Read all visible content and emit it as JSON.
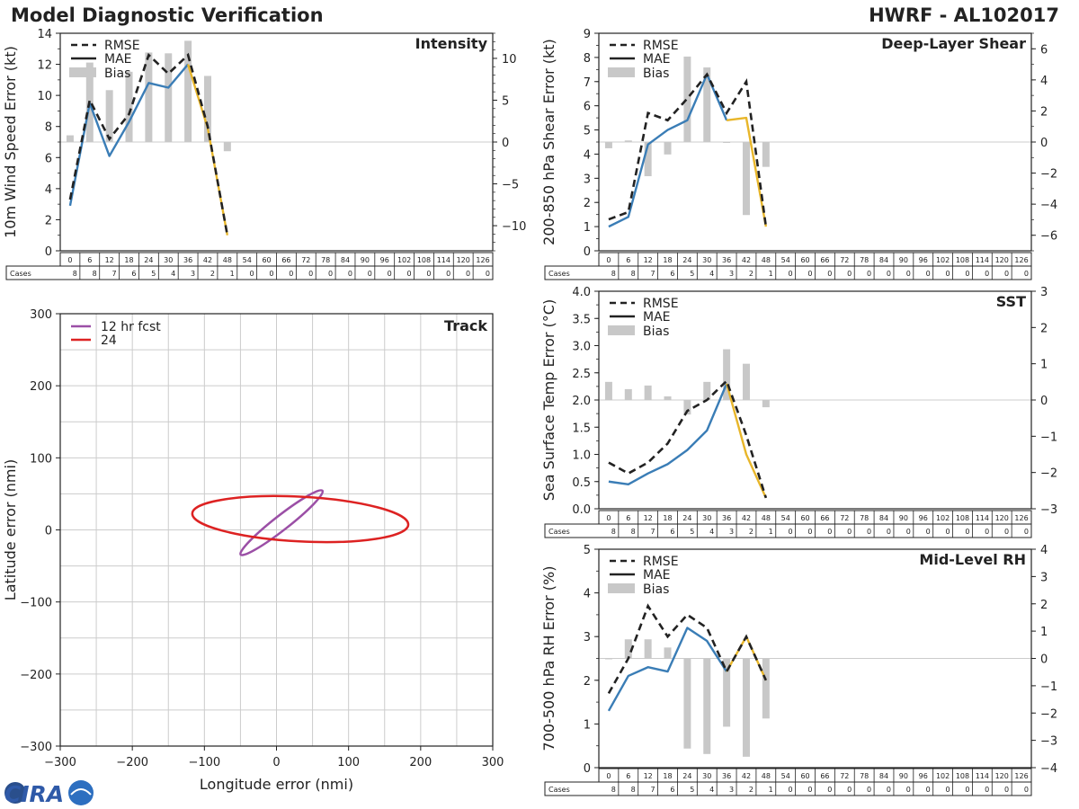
{
  "header": {
    "left_title": "Model Diagnostic Verification",
    "right_title": "HWRF - AL102017"
  },
  "colors": {
    "mae": "#3a7db6",
    "mae_late": "#e8b62a",
    "rmse": "#222222",
    "bias": "#c8c8c8",
    "track_12": "#9b4fa6",
    "track_24": "#dd2222"
  },
  "logo": {
    "text": "CIRA"
  },
  "legend": {
    "rmse": "RMSE",
    "mae": "MAE",
    "bias": "Bias"
  },
  "table": {
    "cases_label": "Cases",
    "hours": [
      0,
      6,
      12,
      18,
      24,
      30,
      36,
      42,
      48,
      54,
      60,
      66,
      72,
      78,
      84,
      90,
      96,
      102,
      108,
      114,
      120,
      126
    ],
    "cases": [
      8,
      8,
      7,
      6,
      5,
      4,
      3,
      2,
      1,
      0,
      0,
      0,
      0,
      0,
      0,
      0,
      0,
      0,
      0,
      0,
      0,
      0
    ]
  },
  "chart_data": [
    {
      "id": "intensity",
      "type": "line",
      "title": "Intensity",
      "ylabel": "10m Wind Speed Error (kt)",
      "ylim": [
        0,
        14
      ],
      "yticks": [
        0,
        2,
        4,
        6,
        8,
        10,
        12,
        14
      ],
      "bias_lim": [
        -13,
        13
      ],
      "bias_ticks": [
        -10,
        -5,
        0,
        5,
        10
      ],
      "x": [
        0,
        6,
        12,
        18,
        24,
        30,
        36,
        42,
        48
      ],
      "rmse": [
        3.3,
        9.7,
        7.2,
        8.8,
        12.6,
        11.4,
        12.6,
        8.0,
        1.0
      ],
      "mae": [
        2.9,
        9.5,
        6.1,
        8.3,
        10.8,
        10.5,
        12.0,
        7.9,
        1.0
      ],
      "bias": [
        0.8,
        9.5,
        6.2,
        8.4,
        10.7,
        10.6,
        12.1,
        7.9,
        -1.1
      ]
    },
    {
      "id": "shear",
      "type": "line",
      "title": "Deep-Layer Shear",
      "ylabel": "200-850 hPa Shear Error (kt)",
      "ylim": [
        0,
        9
      ],
      "yticks": [
        0,
        1,
        2,
        3,
        4,
        5,
        6,
        7,
        8,
        9
      ],
      "bias_lim": [
        -7,
        7
      ],
      "bias_ticks": [
        -6,
        -4,
        -2,
        0,
        2,
        4,
        6
      ],
      "x": [
        0,
        6,
        12,
        18,
        24,
        30,
        36,
        42,
        48
      ],
      "rmse": [
        1.3,
        1.6,
        5.7,
        5.4,
        6.3,
        7.3,
        5.7,
        7.0,
        1.0
      ],
      "mae": [
        1.0,
        1.4,
        4.4,
        5.0,
        5.4,
        7.3,
        5.4,
        5.5,
        1.0
      ],
      "bias": [
        -0.4,
        0.1,
        -2.2,
        -0.8,
        5.5,
        4.8,
        0.0,
        -4.7,
        -1.6
      ]
    },
    {
      "id": "track",
      "type": "scatter",
      "title": "Track",
      "xlabel": "Longitude error (nmi)",
      "ylabel": "Latitude error (nmi)",
      "xlim": [
        -300,
        300
      ],
      "ylim": [
        -300,
        300
      ],
      "ticks": [
        -300,
        -200,
        -100,
        0,
        100,
        200,
        300
      ],
      "ellipses": [
        {
          "name": "12 hr fcst",
          "cx": 7,
          "cy": 10,
          "rx": 72,
          "ry": 10,
          "angle_deg": 38
        },
        {
          "name": "24",
          "cx": 33,
          "cy": 15,
          "rx": 150,
          "ry": 31,
          "angle_deg": -3
        }
      ]
    },
    {
      "id": "sst",
      "type": "line",
      "title": "SST",
      "ylabel": "Sea Surface Temp Error (°C)",
      "ylim": [
        0,
        4
      ],
      "yticks": [
        0.0,
        0.5,
        1.0,
        1.5,
        2.0,
        2.5,
        3.0,
        3.5,
        4.0
      ],
      "bias_lim": [
        -3,
        3
      ],
      "bias_ticks": [
        -3,
        -2,
        -1,
        0,
        1,
        2,
        3
      ],
      "x": [
        0,
        6,
        12,
        18,
        24,
        30,
        36,
        42,
        48
      ],
      "rmse": [
        0.85,
        0.65,
        0.85,
        1.2,
        1.8,
        2.0,
        2.35,
        1.35,
        0.2
      ],
      "mae": [
        0.5,
        0.45,
        0.65,
        0.82,
        1.08,
        1.44,
        2.3,
        1.0,
        0.2
      ],
      "bias": [
        0.5,
        0.3,
        0.4,
        0.1,
        -0.4,
        0.5,
        1.4,
        1.0,
        -0.2
      ]
    },
    {
      "id": "rh",
      "type": "line",
      "title": "Mid-Level RH",
      "ylabel": "700-500 hPa RH Error (%)",
      "ylim": [
        0,
        5
      ],
      "yticks": [
        0,
        1,
        2,
        3,
        4,
        5
      ],
      "bias_lim": [
        -4,
        4
      ],
      "bias_ticks": [
        -4,
        -3,
        -2,
        -1,
        0,
        1,
        2,
        3,
        4
      ],
      "x": [
        0,
        6,
        12,
        18,
        24,
        30,
        36,
        42,
        48
      ],
      "rmse": [
        1.7,
        2.5,
        3.7,
        3.0,
        3.5,
        3.2,
        2.2,
        3.0,
        2.0
      ],
      "mae": [
        1.3,
        2.1,
        2.3,
        2.2,
        3.2,
        2.9,
        2.2,
        3.0,
        2.0
      ],
      "bias": [
        0.0,
        0.7,
        0.7,
        0.4,
        -3.3,
        -3.5,
        -2.5,
        -3.6,
        -2.2
      ]
    }
  ]
}
